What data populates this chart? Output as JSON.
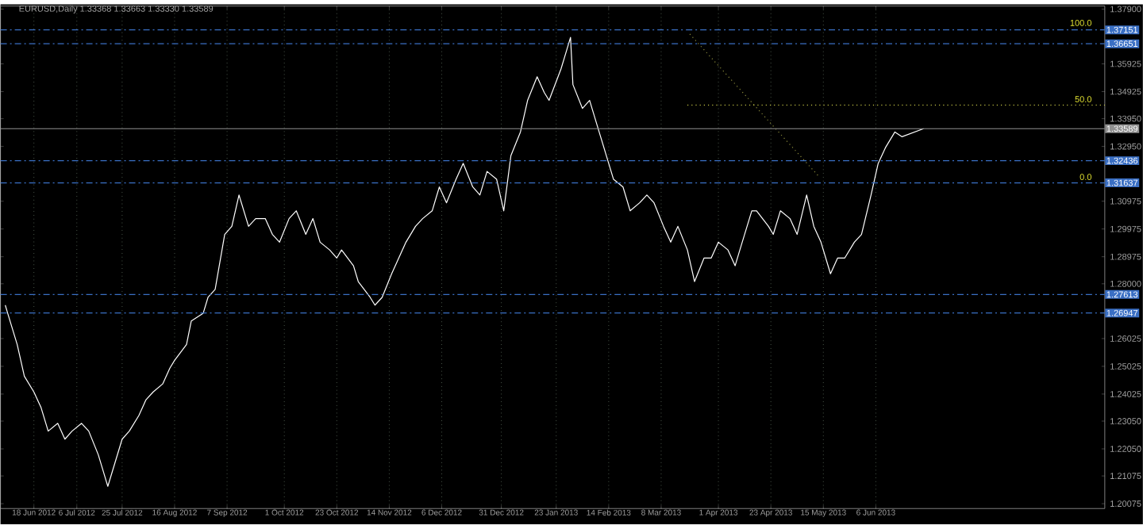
{
  "chart_data": {
    "type": "line",
    "title": "EURUSD,Daily  1.33368 1.33663 1.33330 1.33589",
    "xlim": [
      "2012-06-04",
      "2013-09-10"
    ],
    "ylim": [
      1.199,
      1.3801
    ],
    "grid": "x",
    "xticks": [
      {
        "value": "2012-06-18",
        "label": "18 Jun 2012"
      },
      {
        "value": "2012-07-06",
        "label": "6 Jul 2012"
      },
      {
        "value": "2012-07-25",
        "label": "25 Jul 2012"
      },
      {
        "value": "2012-08-16",
        "label": "16 Aug 2012"
      },
      {
        "value": "2012-09-07",
        "label": "7 Sep 2012"
      },
      {
        "value": "2012-10-01",
        "label": "1 Oct 2012"
      },
      {
        "value": "2012-10-23",
        "label": "23 Oct 2012"
      },
      {
        "value": "2012-11-14",
        "label": "14 Nov 2012"
      },
      {
        "value": "2012-12-06",
        "label": "6 Dec 2012"
      },
      {
        "value": "2012-12-31",
        "label": "31 Dec 2012"
      },
      {
        "value": "2013-01-23",
        "label": "23 Jan 2013"
      },
      {
        "value": "2013-02-14",
        "label": "14 Feb 2013"
      },
      {
        "value": "2013-03-08",
        "label": "8 Mar 2013"
      },
      {
        "value": "2013-04-01",
        "label": "1 Apr 2013"
      },
      {
        "value": "2013-04-23",
        "label": "23 Apr 2013"
      },
      {
        "value": "2013-05-15",
        "label": "15 May 2013"
      },
      {
        "value": "2013-06-06",
        "label": "6 Jun 2013"
      }
    ],
    "yticks": [
      {
        "value": 1.379,
        "label": "1.37900"
      },
      {
        "value": 1.35925,
        "label": "1.35925"
      },
      {
        "value": 1.34925,
        "label": "1.34925"
      },
      {
        "value": 1.3395,
        "label": "1.33950"
      },
      {
        "value": 1.3295,
        "label": "1.32950"
      },
      {
        "value": 1.30975,
        "label": "1.30975"
      },
      {
        "value": 1.29975,
        "label": "1.29975"
      },
      {
        "value": 1.28975,
        "label": "1.28975"
      },
      {
        "value": 1.28,
        "label": "1.28000"
      },
      {
        "value": 1.26025,
        "label": "1.26025"
      },
      {
        "value": 1.25025,
        "label": "1.25025"
      },
      {
        "value": 1.24025,
        "label": "1.24025"
      },
      {
        "value": 1.2305,
        "label": "1.23050"
      },
      {
        "value": 1.2205,
        "label": "1.22050"
      },
      {
        "value": 1.21075,
        "label": "1.21075"
      },
      {
        "value": 1.20075,
        "label": "1.20075"
      }
    ],
    "series": [
      {
        "color": "#ffffff",
        "line_style": "solid",
        "x": [
          "2012-06-06",
          "2012-06-07",
          "2012-06-11",
          "2012-06-14",
          "2012-06-18",
          "2012-06-21",
          "2012-06-24",
          "2012-06-28",
          "2012-07-01",
          "2012-07-04",
          "2012-07-08",
          "2012-07-11",
          "2012-07-15",
          "2012-07-18",
          "2012-07-19",
          "2012-07-22",
          "2012-07-25",
          "2012-07-28",
          "2012-08-01",
          "2012-08-04",
          "2012-08-07",
          "2012-08-11",
          "2012-08-14",
          "2012-08-16",
          "2012-08-21",
          "2012-08-23",
          "2012-08-28",
          "2012-08-30",
          "2012-09-02",
          "2012-09-06",
          "2012-09-09",
          "2012-09-12",
          "2012-09-16",
          "2012-09-19",
          "2012-09-23",
          "2012-09-26",
          "2012-09-29",
          "2012-10-03",
          "2012-10-06",
          "2012-10-10",
          "2012-10-13",
          "2012-10-16",
          "2012-10-20",
          "2012-10-23",
          "2012-10-25",
          "2012-10-30",
          "2012-11-01",
          "2012-11-06",
          "2012-11-08",
          "2012-11-11",
          "2012-11-15",
          "2012-11-18",
          "2012-11-21",
          "2012-11-25",
          "2012-11-28",
          "2012-12-02",
          "2012-12-05",
          "2012-12-08",
          "2012-12-12",
          "2012-12-15",
          "2012-12-19",
          "2012-12-22",
          "2012-12-25",
          "2012-12-29",
          "2013-01-01",
          "2013-01-04",
          "2013-01-08",
          "2013-01-11",
          "2013-01-15",
          "2013-01-18",
          "2013-01-20",
          "2013-01-25",
          "2013-01-27",
          "2013-01-29",
          "2013-01-30",
          "2013-02-03",
          "2013-02-06",
          "2013-02-10",
          "2013-02-13",
          "2013-02-16",
          "2013-02-20",
          "2013-02-23",
          "2013-02-27",
          "2013-03-02",
          "2013-03-05",
          "2013-03-09",
          "2013-03-12",
          "2013-03-15",
          "2013-03-19",
          "2013-03-22",
          "2013-03-26",
          "2013-03-29",
          "2013-04-01",
          "2013-04-05",
          "2013-04-08",
          "2013-04-10",
          "2013-04-15",
          "2013-04-17",
          "2013-04-22",
          "2013-04-24",
          "2013-04-27",
          "2013-05-01",
          "2013-05-04",
          "2013-05-08",
          "2013-05-11",
          "2013-05-14",
          "2013-05-18",
          "2013-05-21",
          "2013-05-24",
          "2013-05-28",
          "2013-05-31",
          "2013-06-04",
          "2013-06-07",
          "2013-06-10",
          "2013-06-14",
          "2013-06-17",
          "2013-06-26"
        ],
        "values": [
          1.2723,
          1.2694,
          1.2581,
          1.2467,
          1.241,
          1.2354,
          1.2269,
          1.2297,
          1.224,
          1.2269,
          1.2297,
          1.2269,
          1.2184,
          1.2098,
          1.207,
          1.2155,
          1.224,
          1.2269,
          1.2325,
          1.2382,
          1.241,
          1.2439,
          1.2496,
          1.2524,
          1.2581,
          1.2666,
          1.2694,
          1.2751,
          1.278,
          1.2978,
          1.3007,
          1.312,
          1.3007,
          1.3035,
          1.3035,
          1.2978,
          1.295,
          1.3035,
          1.3063,
          1.2978,
          1.3035,
          1.295,
          1.2922,
          1.2893,
          1.2922,
          1.2865,
          1.2808,
          1.2751,
          1.2723,
          1.2751,
          1.2836,
          1.2893,
          1.295,
          1.3007,
          1.3035,
          1.3063,
          1.3149,
          1.3092,
          1.3177,
          1.3234,
          1.3149,
          1.312,
          1.3205,
          1.3177,
          1.3063,
          1.3262,
          1.3347,
          1.3461,
          1.3546,
          1.3489,
          1.3461,
          1.3574,
          1.3631,
          1.3688,
          1.3518,
          1.3432,
          1.3461,
          1.3347,
          1.3262,
          1.3177,
          1.3149,
          1.3063,
          1.3092,
          1.312,
          1.3092,
          1.3007,
          1.295,
          1.3007,
          1.2922,
          1.2808,
          1.2893,
          1.2893,
          1.295,
          1.2922,
          1.2865,
          1.2922,
          1.3063,
          1.3063,
          1.3007,
          1.2978,
          1.3063,
          1.3035,
          1.2978,
          1.312,
          1.3007,
          1.295,
          1.2836,
          1.2893,
          1.2893,
          1.295,
          1.2978,
          1.312,
          1.3234,
          1.329,
          1.3347,
          1.333,
          1.3359
        ]
      },
      {
        "color": "#8c8c3c",
        "line_style": "dotted",
        "x": [
          "2013-03-20",
          "2013-05-13"
        ],
        "values": [
          1.37,
          1.3188
        ]
      },
      {
        "color": "#e6e650",
        "line_style": "dotted",
        "x": [
          "2013-03-19",
          "2013-09-10"
        ],
        "values": [
          1.3444,
          1.3444
        ]
      }
    ],
    "ref_lines": [
      {
        "axis": "y",
        "value": 1.37151,
        "label": "1.37151",
        "color": "#3a6fc4",
        "line_style": "dashed"
      },
      {
        "axis": "y",
        "value": 1.36651,
        "label": "1.36651",
        "color": "#3a6fc4",
        "line_style": "dashed"
      },
      {
        "axis": "y",
        "value": 1.33589,
        "label": "1.33589",
        "color": "#909090",
        "line_style": "solid"
      },
      {
        "axis": "y",
        "value": 1.32436,
        "label": "1.32436",
        "color": "#3a6fc4",
        "line_style": "dashed"
      },
      {
        "axis": "y",
        "value": 1.31637,
        "label": "1.31637",
        "color": "#3a6fc4",
        "line_style": "dashed"
      },
      {
        "axis": "y",
        "value": 1.27613,
        "label": "1.27613",
        "color": "#3a6fc4",
        "line_style": "dashed"
      },
      {
        "axis": "y",
        "value": 1.26947,
        "label": "1.26947",
        "color": "#3a6fc4",
        "line_style": "dashed"
      }
    ],
    "annotations": [
      {
        "text": "100.0",
        "x": "2013-09-05",
        "y": 1.3725
      },
      {
        "text": "50.0",
        "x": "2013-09-05",
        "y": 1.345
      },
      {
        "text": "0.0",
        "x": "2013-09-05",
        "y": 1.317
      }
    ]
  }
}
